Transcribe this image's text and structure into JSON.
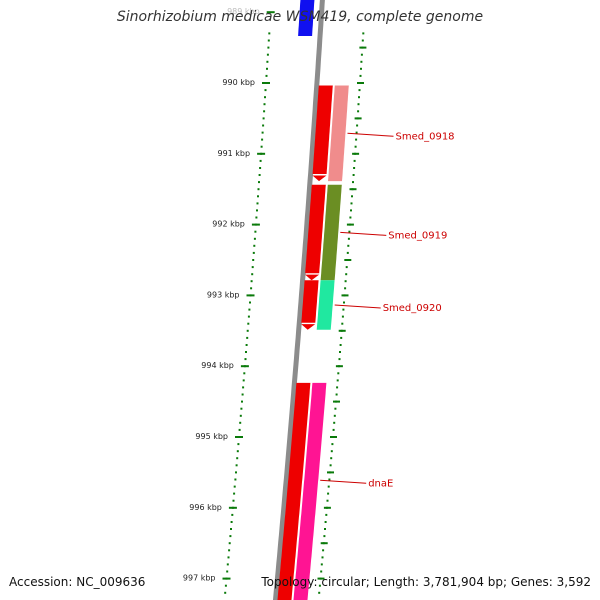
{
  "map": {
    "title": "Sinorhizobium medicae WSM419, complete genome",
    "accession": "Accession: NC_009636",
    "summary": "Topology: circular; Length: 3,781,904 bp; Genes: 3,592",
    "scale_unit": "kbp",
    "visible_range_kbp": [
      989,
      997
    ],
    "ticks": [
      {
        "label": "989 kbp",
        "kbp": 989
      },
      {
        "label": "990 kbp",
        "kbp": 990
      },
      {
        "label": "991 kbp",
        "kbp": 991
      },
      {
        "label": "992 kbp",
        "kbp": 992
      },
      {
        "label": "993 kbp",
        "kbp": 993
      },
      {
        "label": "994 kbp",
        "kbp": 994
      },
      {
        "label": "995 kbp",
        "kbp": 995
      },
      {
        "label": "996 kbp",
        "kbp": 996
      },
      {
        "label": "997 kbp",
        "kbp": 997
      }
    ],
    "genes": [
      {
        "label": "",
        "start_kbp": 988.5,
        "end_kbp": 989.35,
        "strand": "-",
        "color": "#1010f0"
      },
      {
        "label": "Smed_0918",
        "start_kbp": 990.05,
        "end_kbp": 991.4,
        "strand": "+",
        "color": "#ee0000",
        "track_color": "#f08c8c"
      },
      {
        "label": "Smed_0919",
        "start_kbp": 991.45,
        "end_kbp": 992.8,
        "strand": "+",
        "color": "#ee0000",
        "track_color": "#6b8e23"
      },
      {
        "label": "Smed_0920",
        "start_kbp": 992.8,
        "end_kbp": 993.5,
        "strand": "+",
        "color": "#ee0000",
        "track_color": "#20e8a0"
      },
      {
        "label": "dnaE",
        "start_kbp": 994.25,
        "end_kbp": 997.5,
        "strand": "-",
        "color": "#ee0000",
        "track_color": "#ff1493"
      }
    ],
    "colors": {
      "backbone": "#8c8c8c",
      "tick": "#0a7a0a",
      "gene_label": "#cc0000"
    }
  }
}
